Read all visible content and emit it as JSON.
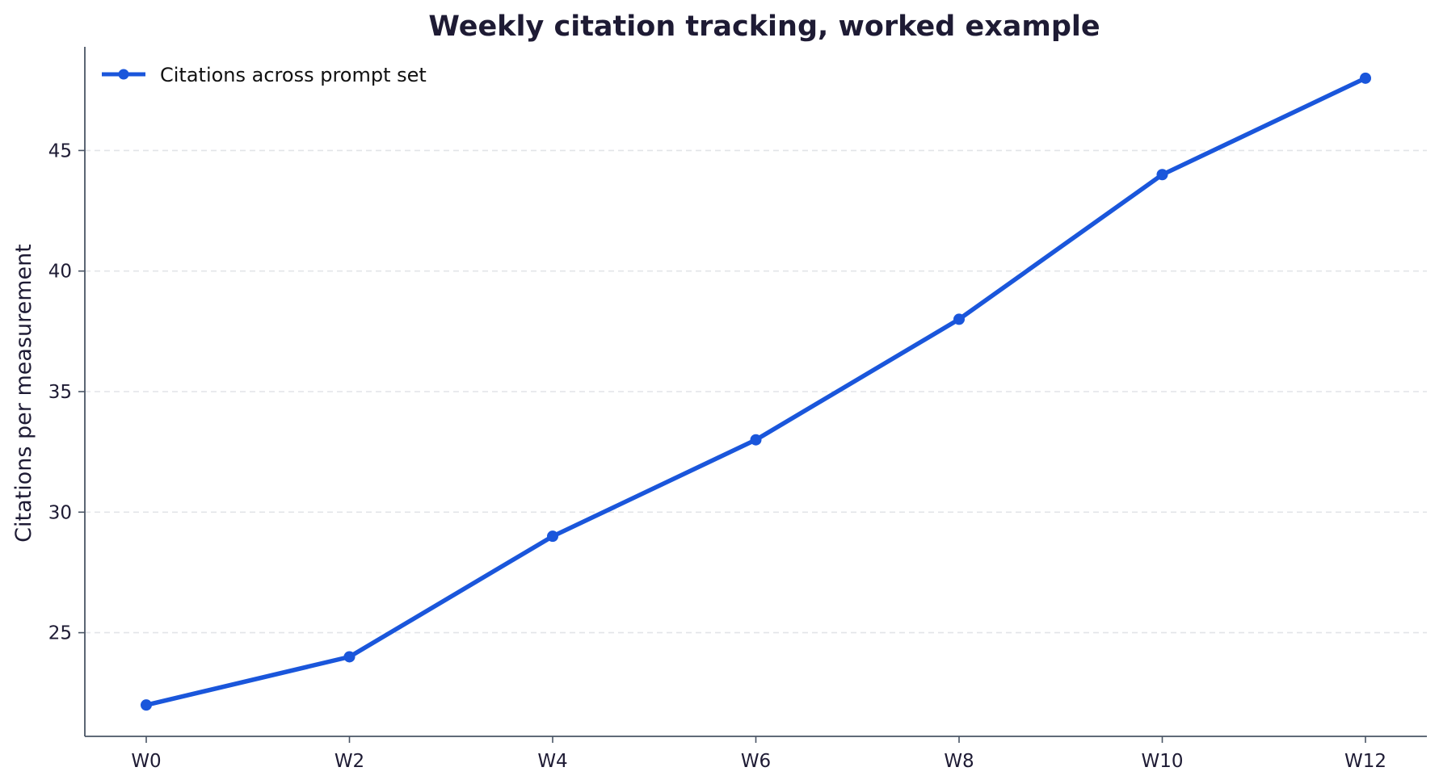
{
  "chart_data": {
    "type": "line",
    "title": "Weekly citation tracking, worked example",
    "xlabel": "",
    "ylabel": "Citations per measurement",
    "categories": [
      "W0",
      "W2",
      "W4",
      "W6",
      "W8",
      "W10",
      "W12"
    ],
    "series": [
      {
        "name": "Citations across prompt set",
        "values": [
          22,
          24,
          29,
          33,
          38,
          44,
          48
        ],
        "color": "#1a56db",
        "marker": "circle"
      }
    ],
    "ylim": [
      20.7,
      49.3
    ],
    "yticks": [
      25,
      30,
      35,
      40,
      45
    ],
    "grid": "y-dashed",
    "legend_position": "top-left"
  }
}
